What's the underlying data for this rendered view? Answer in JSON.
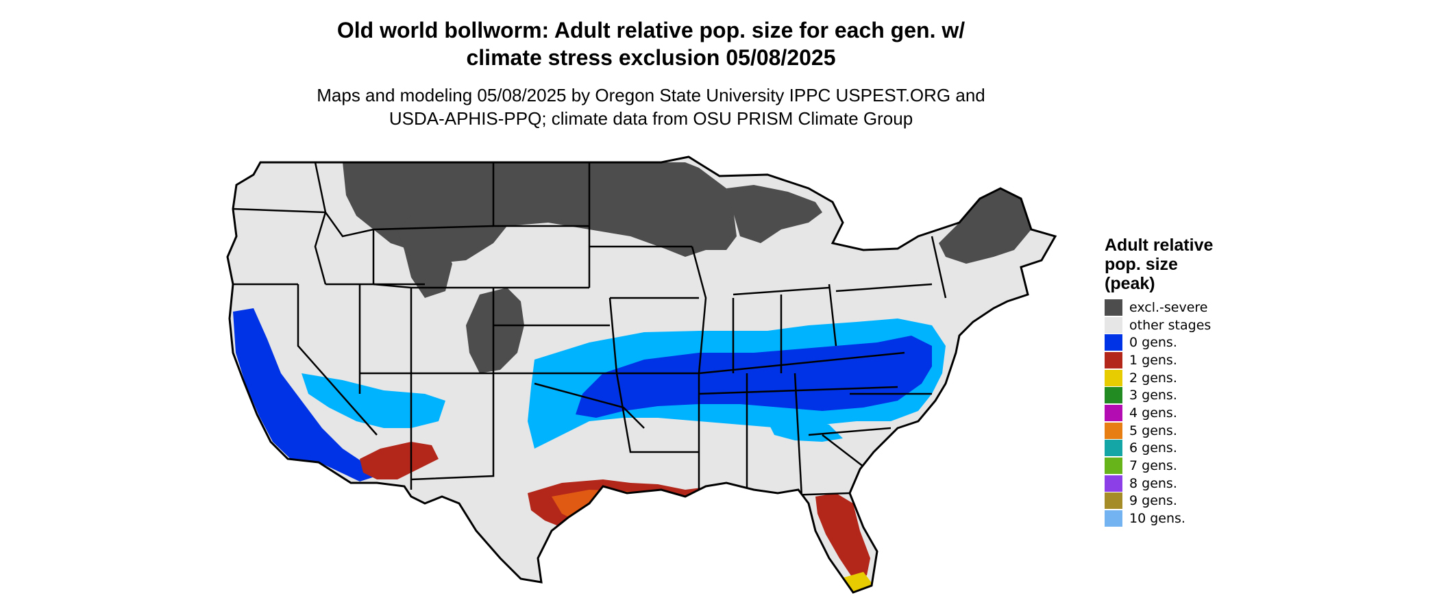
{
  "title_line1": "Old world bollworm: Adult relative pop. size for each gen. w/",
  "title_line2": "climate stress exclusion 05/08/2025",
  "subtitle_line1": "Maps and modeling 05/08/2025 by Oregon State University IPPC USPEST.ORG and",
  "subtitle_line2": "USDA-APHIS-PPQ; climate data from OSU PRISM Climate Group",
  "legend": {
    "title_line1": "Adult relative",
    "title_line2": "pop. size",
    "title_line3": "(peak)",
    "items": [
      {
        "label": "excl.-severe",
        "color": "#4d4d4d"
      },
      {
        "label": "other stages",
        "color": "#e6e6e6"
      },
      {
        "label": "0 gens.",
        "color": "#0033e6"
      },
      {
        "label": "1 gens.",
        "color": "#b3261a"
      },
      {
        "label": "2 gens.",
        "color": "#e6cc00"
      },
      {
        "label": "3 gens.",
        "color": "#228b22"
      },
      {
        "label": "4 gens.",
        "color": "#b30cb3"
      },
      {
        "label": "5 gens.",
        "color": "#e67e14"
      },
      {
        "label": "6 gens.",
        "color": "#14a6a6"
      },
      {
        "label": "7 gens.",
        "color": "#66b31a"
      },
      {
        "label": "8 gens.",
        "color": "#8c3fe6"
      },
      {
        "label": "9 gens.",
        "color": "#a68c26"
      },
      {
        "label": "10 gens.",
        "color": "#73b3f2"
      }
    ]
  },
  "map": {
    "colors": {
      "excluded": "#4d4d4d",
      "other": "#e6e6e6",
      "zero_gen": "#0033e6",
      "zero_gen_light": "#00b3ff",
      "one_gen": "#b3261a",
      "one_gen_orange": "#e05a14",
      "two_gen": "#e6cc00",
      "border": "#000000"
    }
  }
}
